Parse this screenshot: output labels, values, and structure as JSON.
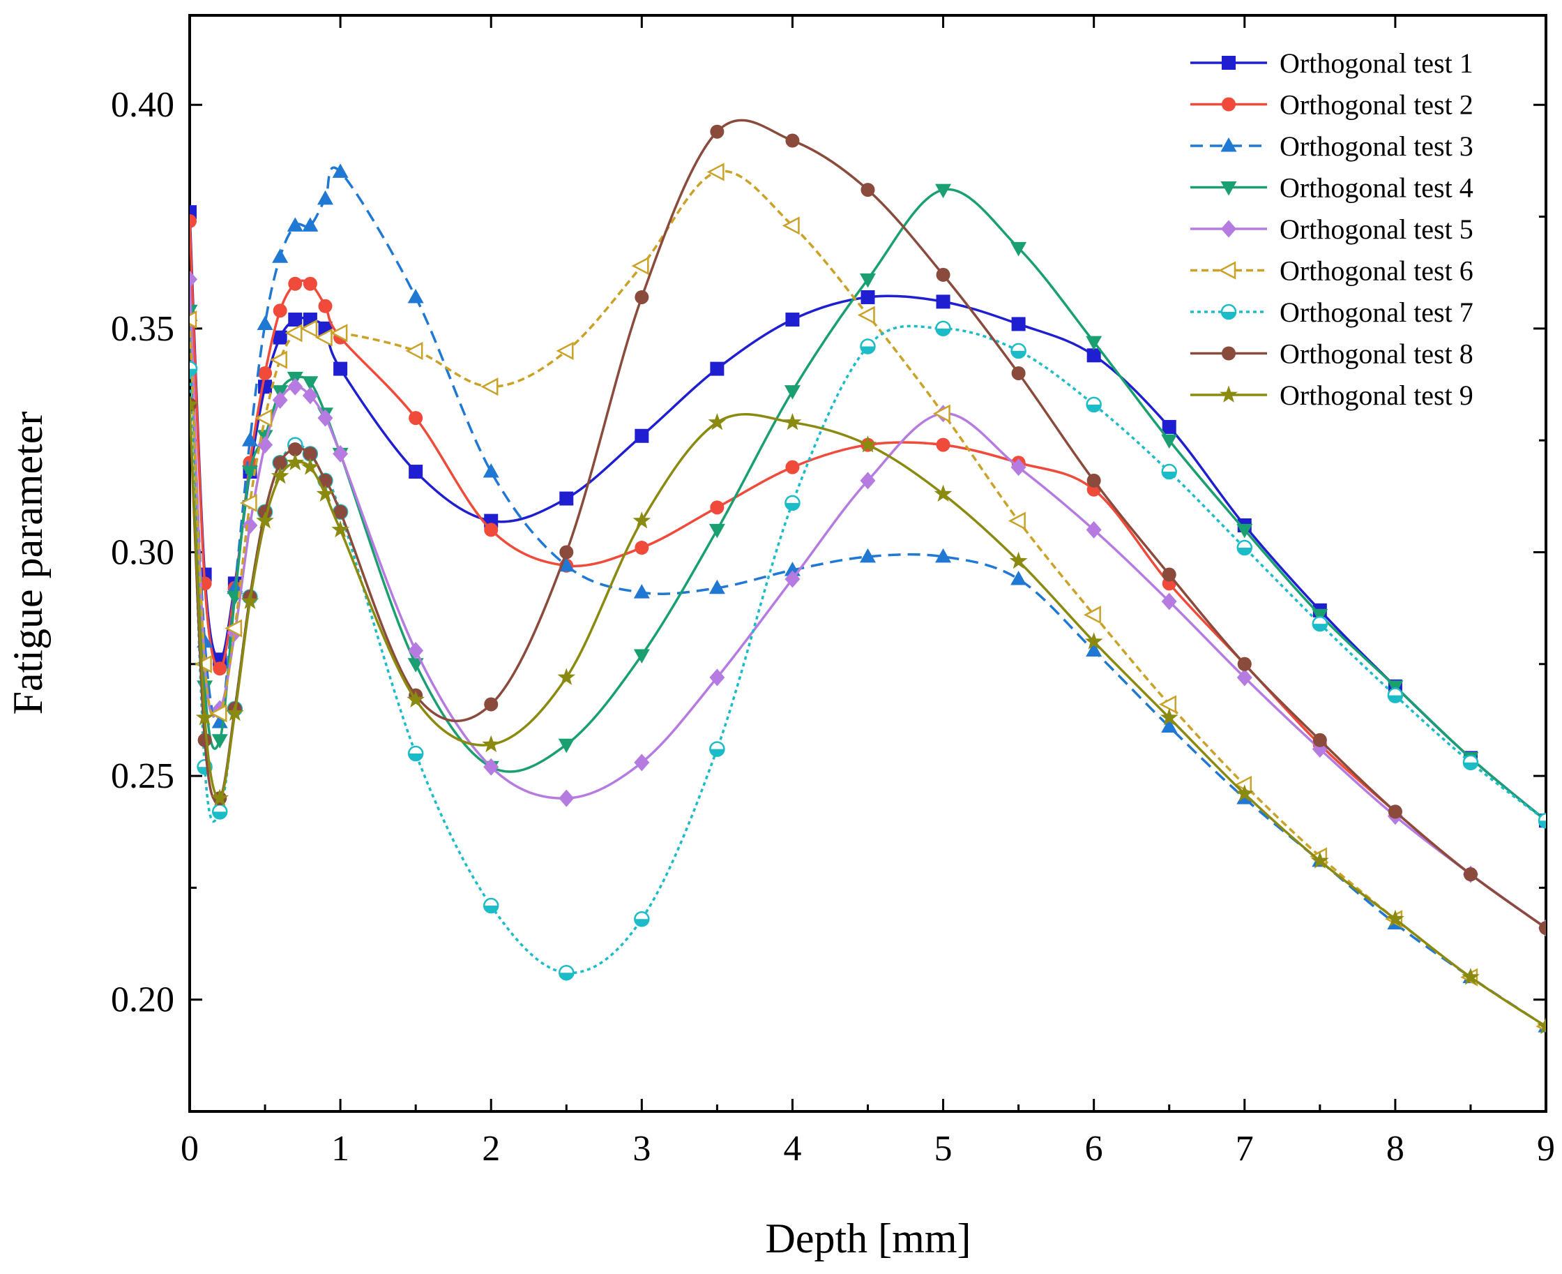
{
  "chart_data": {
    "type": "line",
    "title": "",
    "xlabel": "Depth [mm]",
    "ylabel": "Fatigue parameter",
    "xlim": [
      0,
      9
    ],
    "ylim": [
      0.175,
      0.42
    ],
    "xticks": [
      0,
      1,
      2,
      3,
      4,
      5,
      6,
      7,
      8,
      9
    ],
    "xtick_labels": [
      "0",
      "1",
      "2",
      "3",
      "4",
      "5",
      "6",
      "7",
      "8",
      "9"
    ],
    "yticks": [
      0.2,
      0.25,
      0.3,
      0.35,
      0.4
    ],
    "ytick_labels": [
      "0.20",
      "0.25",
      "0.30",
      "0.35",
      "0.40"
    ],
    "grid": false,
    "legend_position": "top-right",
    "x": [
      0,
      0.1,
      0.2,
      0.3,
      0.4,
      0.5,
      0.6,
      0.7,
      0.8,
      0.9,
      1,
      1.5,
      2,
      2.5,
      3,
      3.5,
      4,
      4.5,
      5,
      5.5,
      6,
      6.5,
      7,
      7.5,
      8,
      8.5,
      9
    ],
    "series": [
      {
        "name": "Orthogonal test 1",
        "color": "#1f1fd1",
        "marker": "square",
        "dash": "solid",
        "values": [
          0.376,
          0.295,
          0.276,
          0.293,
          0.318,
          0.337,
          0.348,
          0.352,
          0.352,
          0.35,
          0.341,
          0.318,
          0.307,
          0.312,
          0.326,
          0.341,
          0.352,
          0.357,
          0.356,
          0.351,
          0.344,
          0.328,
          0.306,
          0.287,
          0.27,
          0.254,
          0.24
        ]
      },
      {
        "name": "Orthogonal test 2",
        "color": "#f04a3a",
        "marker": "circle",
        "dash": "solid",
        "values": [
          0.374,
          0.293,
          0.274,
          0.292,
          0.32,
          0.34,
          0.354,
          0.36,
          0.36,
          0.355,
          0.348,
          0.33,
          0.305,
          0.297,
          0.301,
          0.31,
          0.319,
          0.324,
          0.324,
          0.32,
          0.314,
          0.293,
          0.275,
          0.257,
          0.242,
          0.228,
          0.216
        ]
      },
      {
        "name": "Orthogonal test 3",
        "color": "#1f78d4",
        "marker": "triangle-up",
        "dash": "dashed",
        "values": [
          0.353,
          0.28,
          0.262,
          0.292,
          0.325,
          0.351,
          0.366,
          0.373,
          0.373,
          0.379,
          0.385,
          0.357,
          0.318,
          0.297,
          0.291,
          0.292,
          0.296,
          0.299,
          0.299,
          0.294,
          0.278,
          0.261,
          0.245,
          0.231,
          0.217,
          0.205,
          0.194
        ]
      },
      {
        "name": "Orthogonal test 4",
        "color": "#1aa070",
        "marker": "triangle-down",
        "dash": "solid",
        "values": [
          0.354,
          0.27,
          0.258,
          0.29,
          0.318,
          0.326,
          0.336,
          0.339,
          0.338,
          0.331,
          0.322,
          0.275,
          0.252,
          0.257,
          0.277,
          0.305,
          0.336,
          0.361,
          0.381,
          0.368,
          0.347,
          0.325,
          0.305,
          0.286,
          0.27,
          0.254,
          0.24
        ]
      },
      {
        "name": "Orthogonal test 5",
        "color": "#b57be0",
        "marker": "diamond",
        "dash": "solid",
        "values": [
          0.361,
          0.275,
          0.265,
          0.282,
          0.306,
          0.324,
          0.334,
          0.337,
          0.335,
          0.33,
          0.322,
          0.278,
          0.252,
          0.245,
          0.253,
          0.272,
          0.294,
          0.316,
          0.331,
          0.319,
          0.305,
          0.289,
          0.272,
          0.256,
          0.241,
          0.228,
          0.216
        ]
      },
      {
        "name": "Orthogonal test 6",
        "color": "#c9a227",
        "marker": "triangle-left-open",
        "dash": "short-dash",
        "values": [
          0.352,
          0.275,
          0.264,
          0.283,
          0.311,
          0.33,
          0.343,
          0.349,
          0.35,
          0.348,
          0.349,
          0.345,
          0.337,
          0.345,
          0.364,
          0.385,
          0.373,
          0.353,
          0.331,
          0.307,
          0.286,
          0.266,
          0.248,
          0.232,
          0.218,
          0.205,
          0.194
        ]
      },
      {
        "name": "Orthogonal test 7",
        "color": "#1bbcc8",
        "marker": "circle-half",
        "dash": "dotted",
        "values": [
          0.341,
          0.252,
          0.242,
          0.265,
          0.29,
          0.309,
          0.32,
          0.324,
          0.322,
          0.316,
          0.309,
          0.255,
          0.221,
          0.206,
          0.218,
          0.256,
          0.311,
          0.346,
          0.35,
          0.345,
          0.333,
          0.318,
          0.301,
          0.284,
          0.268,
          0.253,
          0.24
        ]
      },
      {
        "name": "Orthogonal test 8",
        "color": "#8a4a3c",
        "marker": "circle",
        "dash": "solid",
        "values": [
          0.333,
          0.258,
          0.245,
          0.265,
          0.29,
          0.309,
          0.32,
          0.323,
          0.322,
          0.316,
          0.309,
          0.268,
          0.266,
          0.3,
          0.357,
          0.394,
          0.392,
          0.381,
          0.362,
          0.34,
          0.316,
          0.295,
          0.275,
          0.258,
          0.242,
          0.228,
          0.216
        ]
      },
      {
        "name": "Orthogonal test 9",
        "color": "#8a8a10",
        "marker": "star",
        "dash": "solid",
        "values": [
          0.333,
          0.263,
          0.245,
          0.264,
          0.289,
          0.307,
          0.317,
          0.32,
          0.319,
          0.313,
          0.305,
          0.267,
          0.257,
          0.272,
          0.307,
          0.329,
          0.329,
          0.324,
          0.313,
          0.298,
          0.28,
          0.263,
          0.246,
          0.231,
          0.218,
          0.205,
          0.194
        ]
      }
    ]
  }
}
